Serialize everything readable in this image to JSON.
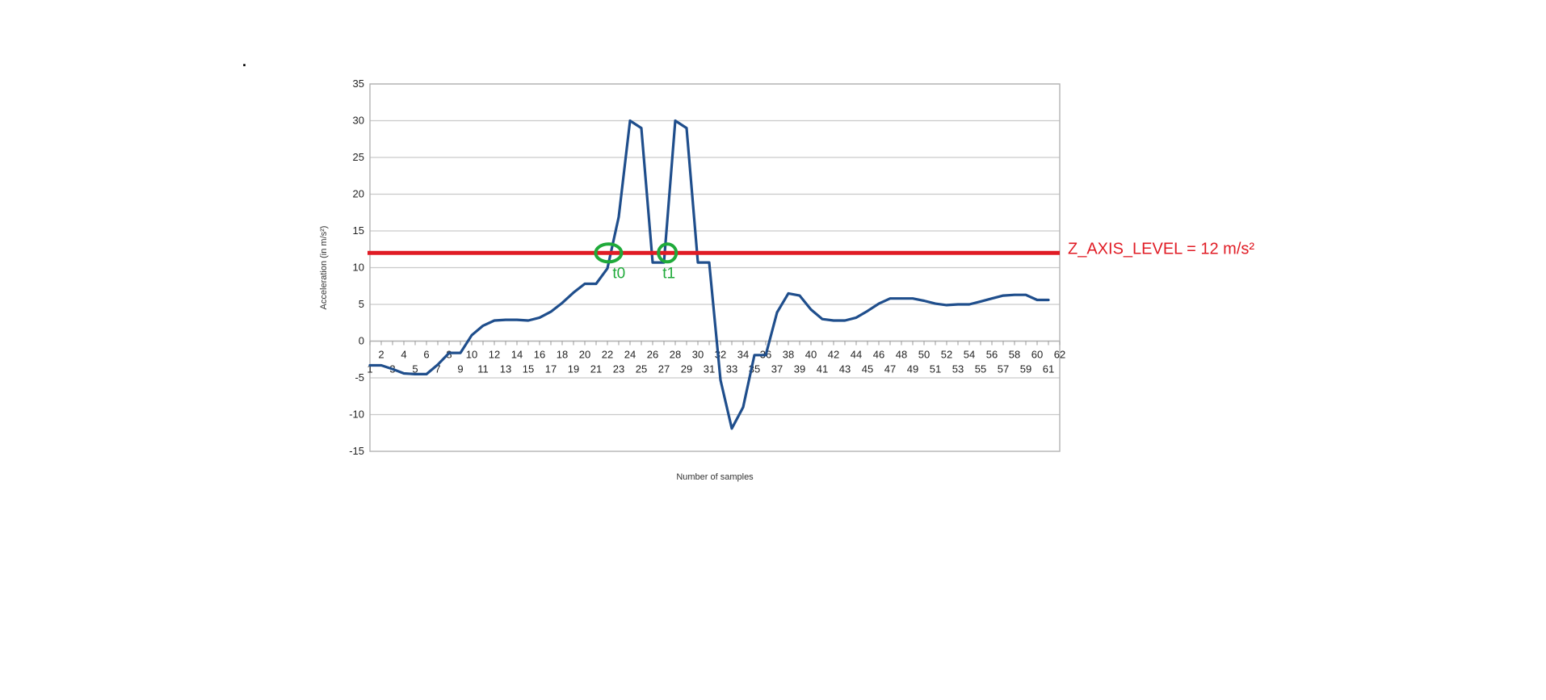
{
  "chart_data": {
    "type": "line",
    "xlabel": "Number of samples",
    "ylabel": "Acceleration (in m/s²)",
    "ylim": [
      -15,
      35
    ],
    "yticks": [
      35,
      30,
      25,
      20,
      15,
      10,
      5,
      0,
      -5,
      -10,
      -15
    ],
    "xlim": [
      1,
      62
    ],
    "grid": true,
    "legend": "none",
    "x": [
      1,
      2,
      3,
      4,
      5,
      6,
      7,
      8,
      9,
      10,
      11,
      12,
      13,
      14,
      15,
      16,
      17,
      18,
      19,
      20,
      21,
      22,
      23,
      24,
      25,
      26,
      27,
      28,
      29,
      30,
      31,
      32,
      33,
      34,
      35,
      36,
      37,
      38,
      39,
      40,
      41,
      42,
      43,
      44,
      45,
      46,
      47,
      48,
      49,
      50,
      51,
      52,
      53,
      54,
      55,
      56,
      57,
      58,
      59,
      60,
      61
    ],
    "series": [
      {
        "color": "#1f4e8c",
        "values": [
          -3.3,
          -3.3,
          -3.8,
          -4.4,
          -4.5,
          -4.5,
          -3.2,
          -1.6,
          -1.6,
          0.8,
          2.1,
          2.8,
          2.9,
          2.9,
          2.8,
          3.2,
          4.0,
          5.2,
          6.6,
          7.8,
          7.8,
          9.9,
          16.9,
          30.0,
          29.0,
          10.7,
          10.7,
          30.0,
          29.0,
          10.7,
          10.7,
          -5.3,
          -11.9,
          -9.0,
          -1.9,
          -1.9,
          3.9,
          6.5,
          6.2,
          4.3,
          3.0,
          2.8,
          2.8,
          3.2,
          4.1,
          5.1,
          5.8,
          5.8,
          5.8,
          5.5,
          5.1,
          4.9,
          5.0,
          5.0,
          5.4,
          5.8,
          6.2,
          6.3,
          6.3,
          5.6,
          5.6
        ]
      }
    ],
    "threshold": {
      "value": 12,
      "label": "Z_AXIS_LEVEL = 12 m/s²",
      "color": "#e01b24"
    },
    "markers": [
      {
        "label": "t0",
        "x": 22.1,
        "y": 12,
        "color": "#1faa3a"
      },
      {
        "label": "t1",
        "x": 27.3,
        "y": 12,
        "color": "#1faa3a"
      }
    ],
    "colors": {
      "grid": "#c9c9c9",
      "frame": "#b3b3b3",
      "text": "#222222"
    }
  },
  "page": {
    "dot": "."
  }
}
